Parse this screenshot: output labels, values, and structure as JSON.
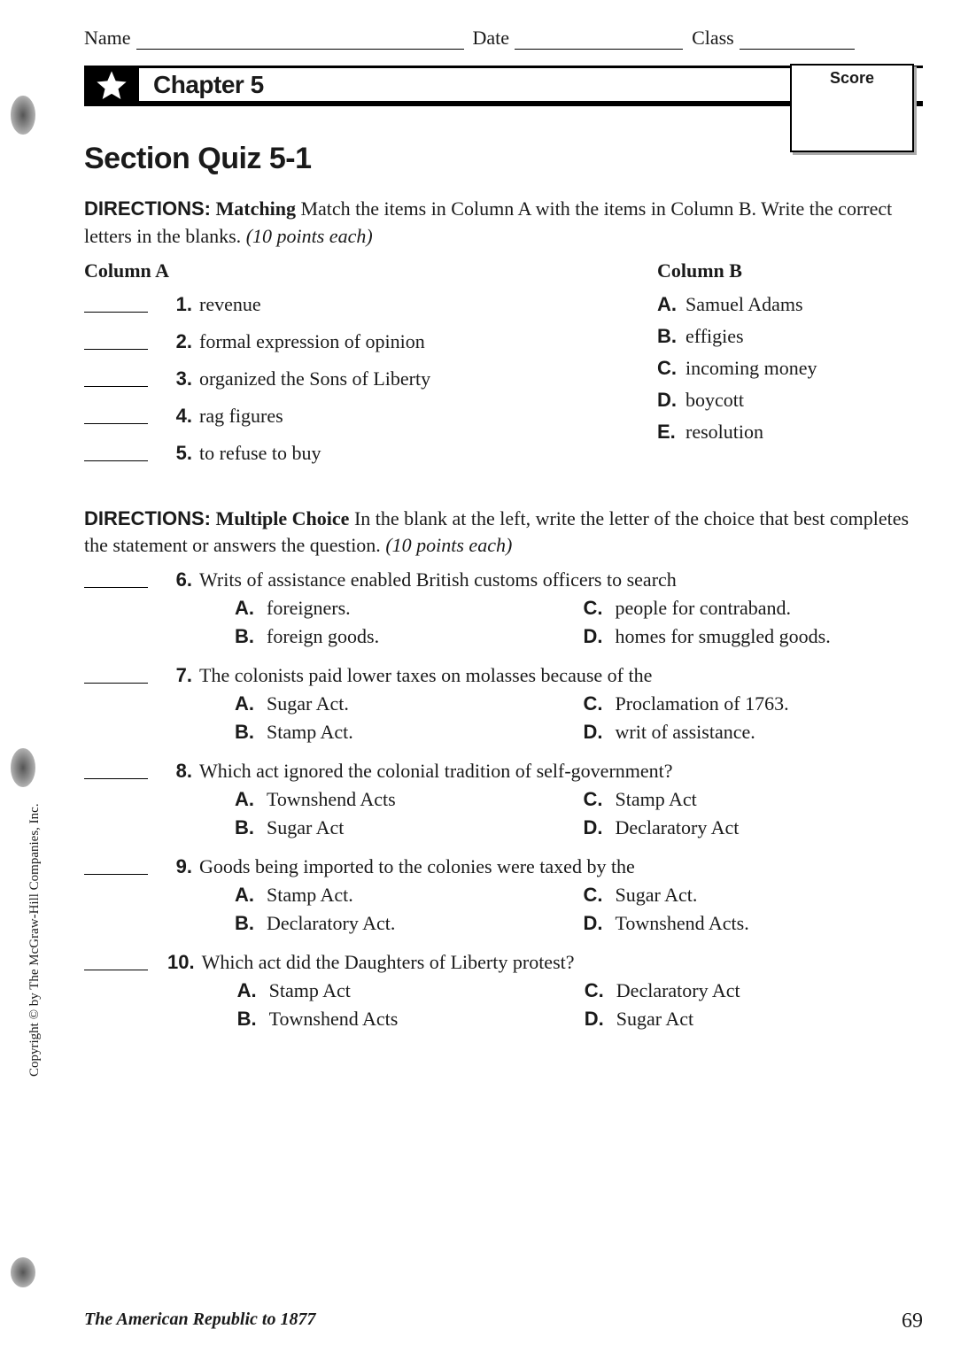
{
  "header": {
    "name": "Name",
    "date": "Date",
    "class": "Class"
  },
  "chapter": "Chapter 5",
  "score_label": "Score",
  "section_title": "Section Quiz 5-1",
  "dir1": {
    "label": "DIRECTIONS:",
    "sub": "Matching",
    "text1": " Match the items in Column A with the items in Column B. Write the correct letters in the blanks. ",
    "points": "(10 points each)"
  },
  "colA_head": "Column A",
  "colB_head": "Column B",
  "columnA": [
    {
      "n": "1.",
      "t": "revenue"
    },
    {
      "n": "2.",
      "t": "formal expression of opinion"
    },
    {
      "n": "3.",
      "t": "organized the Sons of Liberty"
    },
    {
      "n": "4.",
      "t": "rag figures"
    },
    {
      "n": "5.",
      "t": "to refuse to buy"
    }
  ],
  "columnB": [
    {
      "l": "A.",
      "t": "Samuel Adams"
    },
    {
      "l": "B.",
      "t": "effigies"
    },
    {
      "l": "C.",
      "t": "incoming money"
    },
    {
      "l": "D.",
      "t": "boycott"
    },
    {
      "l": "E.",
      "t": "resolution"
    }
  ],
  "dir2": {
    "label": "DIRECTIONS:",
    "sub": "Multiple Choice",
    "text1": " In the blank at the left, write the letter of the choice that best completes the statement or answers the question. ",
    "points": "(10 points each)"
  },
  "mc": [
    {
      "n": "6.",
      "stem": "Writs of assistance enabled British customs officers to search",
      "c": [
        {
          "l": "A.",
          "t": "foreigners."
        },
        {
          "l": "C.",
          "t": "people for contraband."
        },
        {
          "l": "B.",
          "t": "foreign goods."
        },
        {
          "l": "D.",
          "t": "homes for smuggled goods."
        }
      ]
    },
    {
      "n": "7.",
      "stem": "The colonists paid lower taxes on molasses because of the",
      "c": [
        {
          "l": "A.",
          "t": "Sugar Act."
        },
        {
          "l": "C.",
          "t": "Proclamation of 1763."
        },
        {
          "l": "B.",
          "t": "Stamp Act."
        },
        {
          "l": "D.",
          "t": "writ of assistance."
        }
      ]
    },
    {
      "n": "8.",
      "stem": "Which act ignored the colonial tradition of self-government?",
      "c": [
        {
          "l": "A.",
          "t": "Townshend Acts"
        },
        {
          "l": "C.",
          "t": "Stamp Act"
        },
        {
          "l": "B.",
          "t": "Sugar Act"
        },
        {
          "l": "D.",
          "t": "Declaratory Act"
        }
      ]
    },
    {
      "n": "9.",
      "stem": "Goods being imported to the colonies were taxed by the",
      "c": [
        {
          "l": "A.",
          "t": "Stamp Act."
        },
        {
          "l": "C.",
          "t": "Sugar Act."
        },
        {
          "l": "B.",
          "t": "Declaratory Act."
        },
        {
          "l": "D.",
          "t": "Townshend Acts."
        }
      ]
    },
    {
      "n": "10.",
      "stem": "Which act did the Daughters of Liberty protest?",
      "c": [
        {
          "l": "A.",
          "t": "Stamp Act"
        },
        {
          "l": "C.",
          "t": "Declaratory Act"
        },
        {
          "l": "B.",
          "t": "Townshend Acts"
        },
        {
          "l": "D.",
          "t": "Sugar Act"
        }
      ]
    }
  ],
  "copyright": "Copyright © by The McGraw-Hill Companies, Inc.",
  "footer": {
    "book": "The American Republic to 1877",
    "page": "69"
  }
}
